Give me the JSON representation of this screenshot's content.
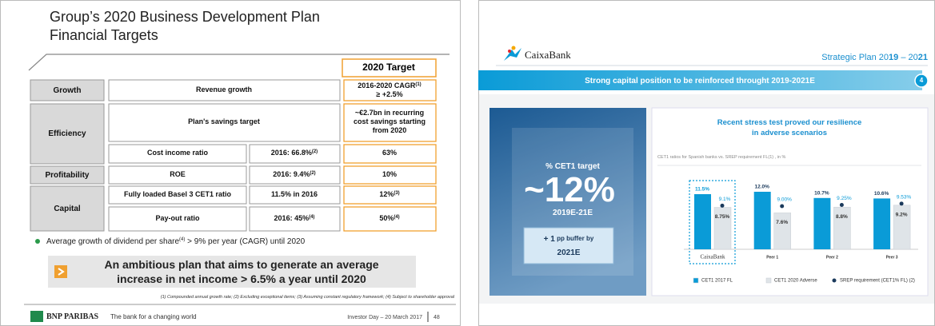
{
  "left_slide": {
    "title": [
      "Group’s 2020 Business Development Plan",
      "Financial Targets"
    ],
    "target_header": "2020 Target",
    "growth": {
      "label": "Growth",
      "item": "Revenue growth",
      "target": "2016-2020 CAGR",
      "target_sup": "(1)",
      "target_line2": "≥ +2.5%"
    },
    "efficiency": {
      "label": "Efficiency",
      "item1": "Plan's savings target",
      "target1": [
        "~€2.7bn in recurring",
        "cost savings starting",
        "from  2020"
      ],
      "item2": "Cost income ratio",
      "base2": "2016: 66.8%",
      "base2_sup": "(2)",
      "target2": "63%"
    },
    "profitability": {
      "label": "Profitability",
      "item": "ROE",
      "base": "2016: 9.4%",
      "base_sup": "(2)",
      "target": "10%"
    },
    "capital": {
      "label": "Capital",
      "item1": "Fully loaded Basel 3 CET1 ratio",
      "base1": "11.5% in 2016",
      "target1": "12%",
      "target1_sup": "(3)",
      "item2": "Pay-out ratio",
      "base2": "2016: 45%",
      "base2_sup": "(4)",
      "target2": "50%",
      "target2_sup": "(4)"
    },
    "bullet": [
      "Average growth of dividend per share",
      "(4)",
      " > 9% per year (CAGR) until 2020"
    ],
    "highlight": [
      "An ambitious plan that aims to generate an average",
      "increase in net income > 6.5% a year until 2020"
    ],
    "footnote": "(1) Compounded annual growth rate; (2) Excluding exceptional items; (3) Assuming constant regulatory framework; (4) Subject to shareholder approval",
    "footer": {
      "brand": "BNP PARIBAS",
      "tagline": "The bank for a changing world",
      "event": "Investor Day – 20 March 2017",
      "page": "48"
    }
  },
  "right_slide": {
    "logo": "CaixaBank",
    "plan": [
      "Strategic Plan 20",
      "19",
      " – 20",
      "21"
    ],
    "banner": "Strong capital position to be reinforced throught 2019-2021E",
    "banner_number": "4",
    "target_panel": {
      "label": "% CET1 target",
      "value": "~12%",
      "period": "2019E-21E",
      "buffer": [
        "+ 1",
        " pp buffer by",
        "2021E"
      ]
    }
  },
  "chart_data": {
    "type": "bar",
    "title": [
      "Recent stress test proved our resilience",
      "in adverse scenarios"
    ],
    "subtitle": "CET1 ratios for Spanish banks vs. SREP requirement FL(1) , in %",
    "categories": [
      "CaixaBank",
      "Peer 1",
      "Peer 2",
      "Peer 3"
    ],
    "series": [
      {
        "name": "CET1 2017 FL",
        "color": "#0a9bd7",
        "values": [
          11.5,
          12.0,
          10.7,
          10.6
        ],
        "value_labels": [
          "11.5%",
          "12.0%",
          "10.7%",
          "10.6%"
        ]
      },
      {
        "name": "CET1 2020 Adverse",
        "color": "#dfe4e8",
        "values": [
          8.75,
          7.6,
          8.8,
          9.2
        ],
        "value_labels": [
          "8.75%",
          "7.6%",
          "8.8%",
          "9.2%"
        ]
      },
      {
        "name": "SREP requirement (CET1% FL) (2)",
        "color": "#1b3a5c",
        "type": "dot",
        "values": [
          9.1,
          9.0,
          9.25,
          9.53
        ],
        "value_labels": [
          "9.1%",
          "9.00%",
          "9.25%",
          "9.53%"
        ]
      }
    ]
  }
}
